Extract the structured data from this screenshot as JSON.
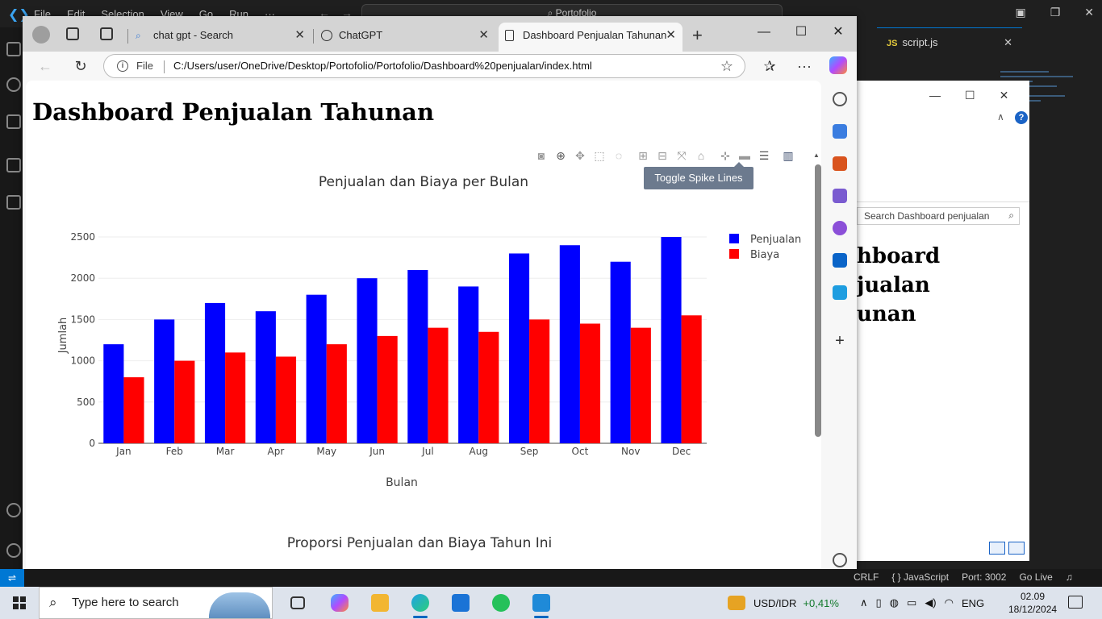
{
  "vscode": {
    "menu": [
      "File",
      "Edit",
      "Selection",
      "View",
      "Go",
      "Run",
      "···"
    ],
    "command_center": "Portofolio",
    "tab_label": "script.js",
    "tab_badge": "JS",
    "status": {
      "crlf": "CRLF",
      "language": "{ } JavaScript",
      "port": "Port: 3002",
      "golive": "Go Live"
    }
  },
  "sub_window": {
    "search_placeholder": "Search Dashboard penjualan",
    "heading": "hboard\njualan\nunan"
  },
  "browser": {
    "tabs": [
      {
        "label": "chat gpt - Search",
        "active": false
      },
      {
        "label": "ChatGPT",
        "active": false
      },
      {
        "label": "Dashboard Penjualan Tahunan",
        "active": true
      }
    ],
    "address": {
      "scheme_label": "File",
      "url": "C:/Users/user/OneDrive/Desktop/Portofolio/Portofolio/Dashboard%20penjualan/index.html"
    },
    "page": {
      "title": "Dashboard Penjualan Tahunan",
      "tooltip": "Toggle Spike Lines",
      "chart2_title": "Proporsi Penjualan dan Biaya Tahun Ini"
    }
  },
  "chart_data": {
    "type": "bar",
    "title": "Penjualan dan Biaya per Bulan",
    "xlabel": "Bulan",
    "ylabel": "Jumlah",
    "categories": [
      "Jan",
      "Feb",
      "Mar",
      "Apr",
      "May",
      "Jun",
      "Jul",
      "Aug",
      "Sep",
      "Oct",
      "Nov",
      "Dec"
    ],
    "series": [
      {
        "name": "Penjualan",
        "color": "#0000ff",
        "values": [
          1200,
          1500,
          1700,
          1600,
          1800,
          2000,
          2100,
          1900,
          2300,
          2400,
          2200,
          2500
        ]
      },
      {
        "name": "Biaya",
        "color": "#ff0000",
        "values": [
          800,
          1000,
          1100,
          1050,
          1200,
          1300,
          1400,
          1350,
          1500,
          1450,
          1400,
          1550
        ]
      }
    ],
    "ylim": [
      0,
      2500
    ],
    "yticks": [
      0,
      500,
      1000,
      1500,
      2000,
      2500
    ],
    "grid": true,
    "legend": "top-right"
  },
  "taskbar": {
    "search_placeholder": "Type here to search",
    "ticker": "USD/IDR",
    "ticker_change": "+0,41%",
    "language": "ENG",
    "time": "02.09",
    "date": "18/12/2024"
  }
}
